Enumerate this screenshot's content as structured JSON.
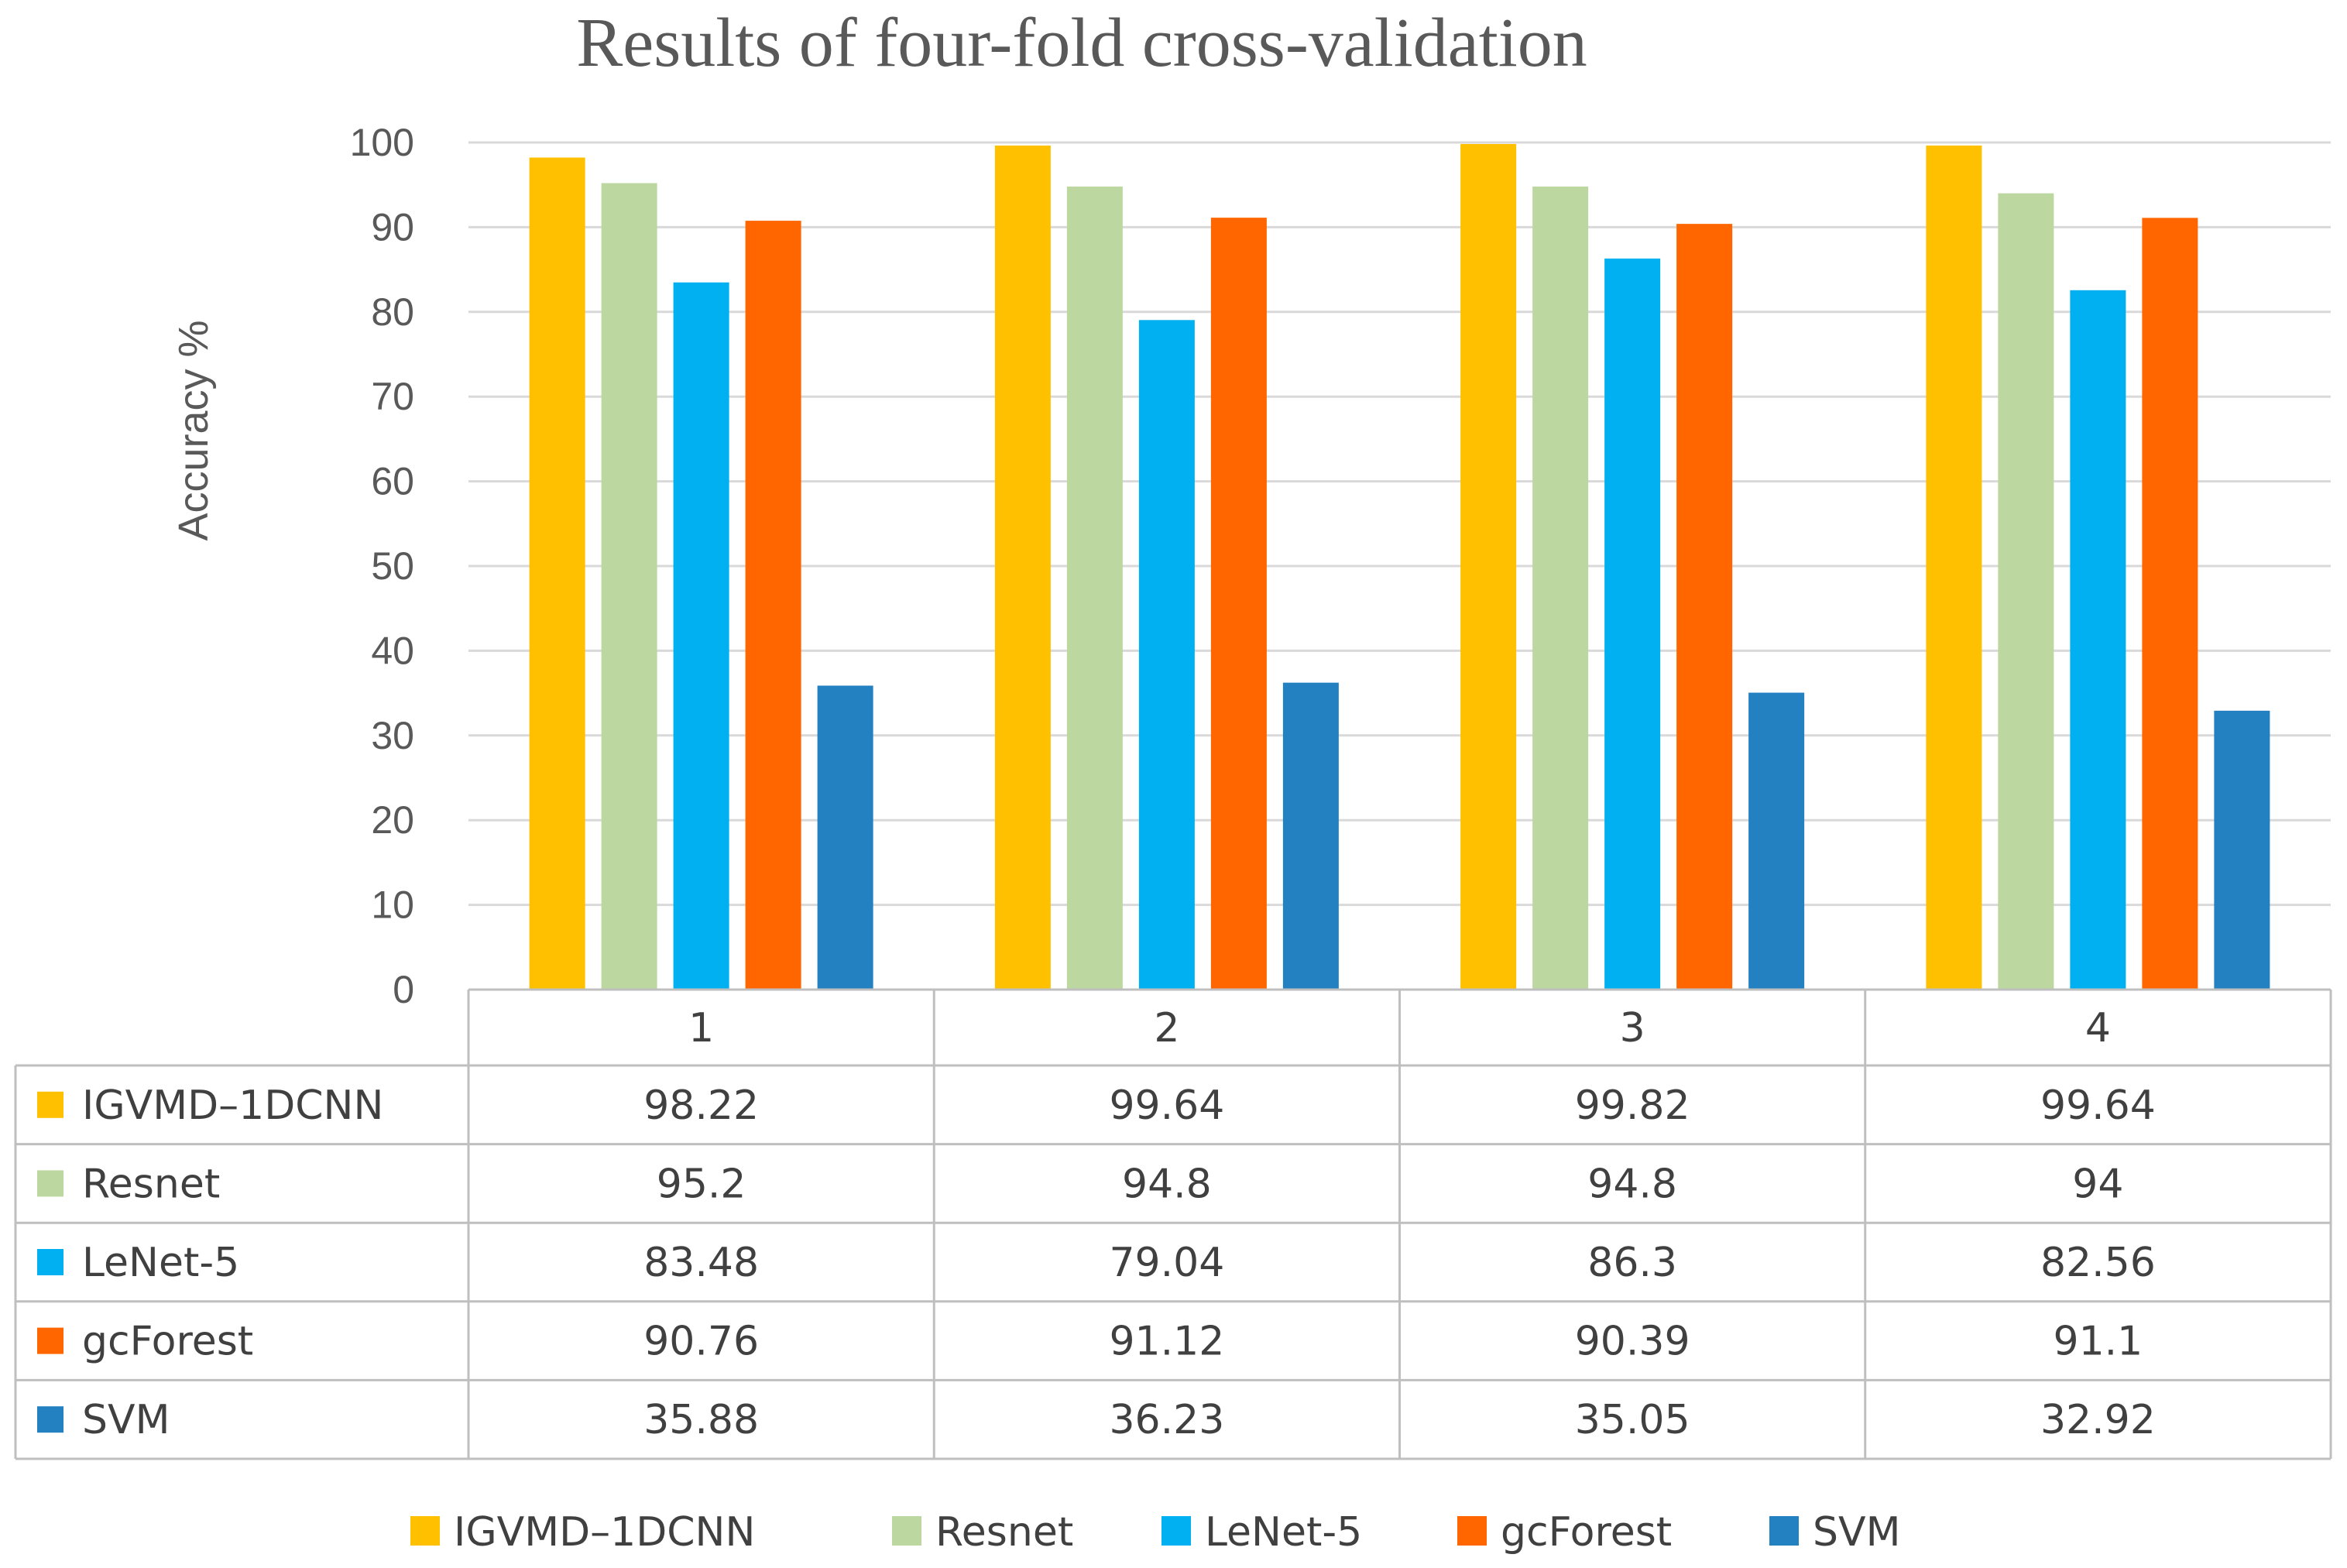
{
  "chart_data": {
    "type": "bar",
    "title": "Results of four-fold cross-validation",
    "ylabel": "Accuracy %",
    "xlabel": "",
    "ylim": [
      0,
      100
    ],
    "yticks": [
      0,
      10,
      20,
      30,
      40,
      50,
      60,
      70,
      80,
      90,
      100
    ],
    "grid": true,
    "legend_position": "bottom",
    "data_table": true,
    "categories": [
      "1",
      "2",
      "3",
      "4"
    ],
    "series": [
      {
        "name": "IGVMD–1DCNN",
        "color": "#FFC000",
        "values": [
          98.22,
          99.64,
          99.82,
          99.64
        ]
      },
      {
        "name": "Resnet",
        "color": "#BDD7A0",
        "values": [
          95.2,
          94.8,
          94.8,
          94
        ]
      },
      {
        "name": "LeNet-5",
        "color": "#00B0F0",
        "values": [
          83.48,
          79.04,
          86.3,
          82.56
        ]
      },
      {
        "name": "gcForest",
        "color": "#FF6600",
        "values": [
          90.76,
          91.12,
          90.39,
          91.1
        ]
      },
      {
        "name": "SVM",
        "color": "#2381C1",
        "values": [
          35.88,
          36.23,
          35.05,
          32.92
        ]
      }
    ]
  }
}
